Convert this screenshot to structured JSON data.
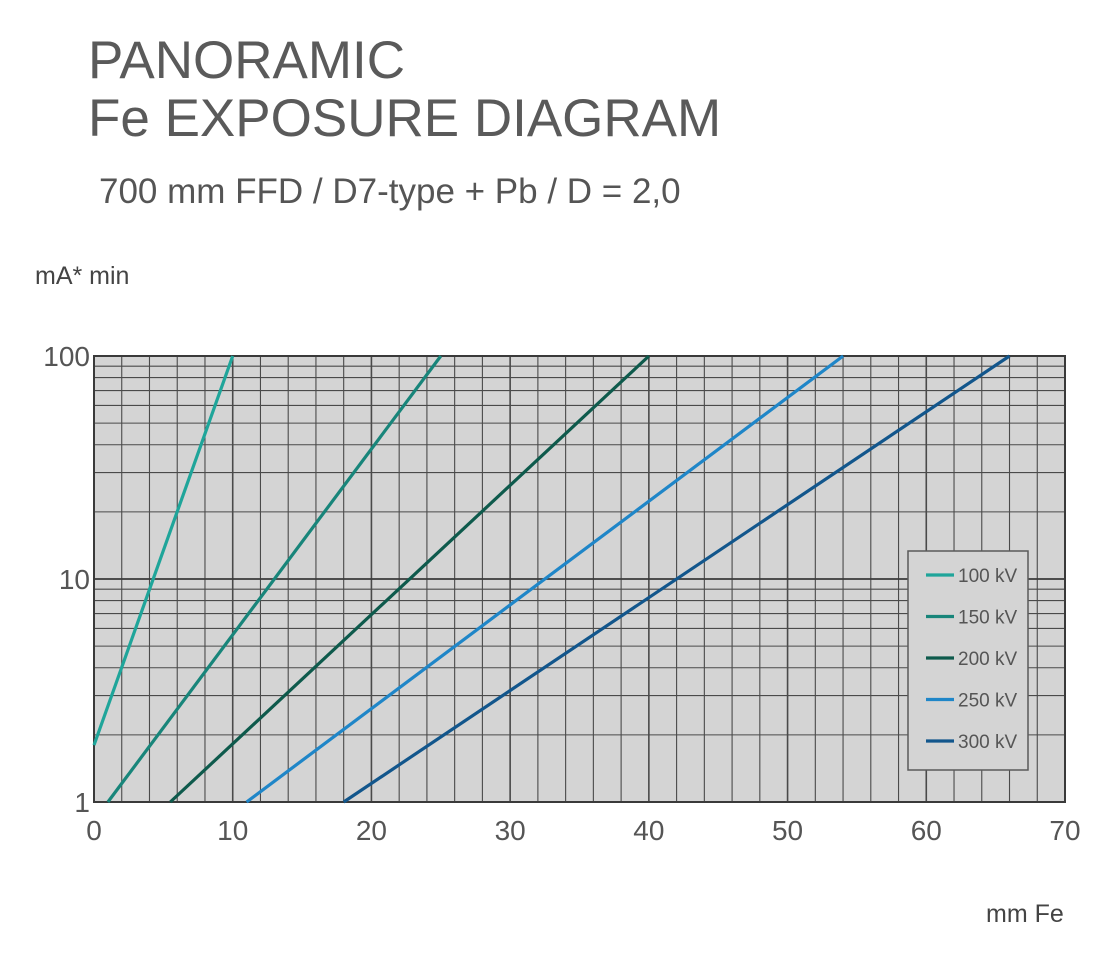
{
  "chart_data": {
    "type": "line",
    "title_line1": "PANORAMIC",
    "title_line2": "Fe EXPOSURE DIAGRAM",
    "subtitle": "700 mm FFD / D7-type + Pb / D = 2,0",
    "ylabel": "mA* min",
    "xlabel": "mm Fe",
    "xlim": [
      0,
      70
    ],
    "ylim": [
      1,
      100
    ],
    "yscale": "log",
    "grid": true,
    "x_ticks": [
      "0",
      "10",
      "20",
      "30",
      "40",
      "50",
      "60",
      "70"
    ],
    "y_ticks": [
      "1",
      "10",
      "100"
    ],
    "legend_position": "right",
    "series": [
      {
        "name": "100 kV",
        "color": "#1fa59a",
        "points": [
          [
            0,
            1.8
          ],
          [
            10,
            100
          ]
        ]
      },
      {
        "name": "150 kV",
        "color": "#18857a",
        "points": [
          [
            1,
            1
          ],
          [
            25,
            100
          ]
        ]
      },
      {
        "name": "200 kV",
        "color": "#0e5a4c",
        "points": [
          [
            5.5,
            1
          ],
          [
            40,
            100
          ]
        ]
      },
      {
        "name": "250 kV",
        "color": "#1f86c8",
        "points": [
          [
            11,
            1
          ],
          [
            54,
            100
          ]
        ]
      },
      {
        "name": "300 kV",
        "color": "#12568c",
        "points": [
          [
            18,
            1
          ],
          [
            66,
            100
          ]
        ]
      }
    ]
  }
}
